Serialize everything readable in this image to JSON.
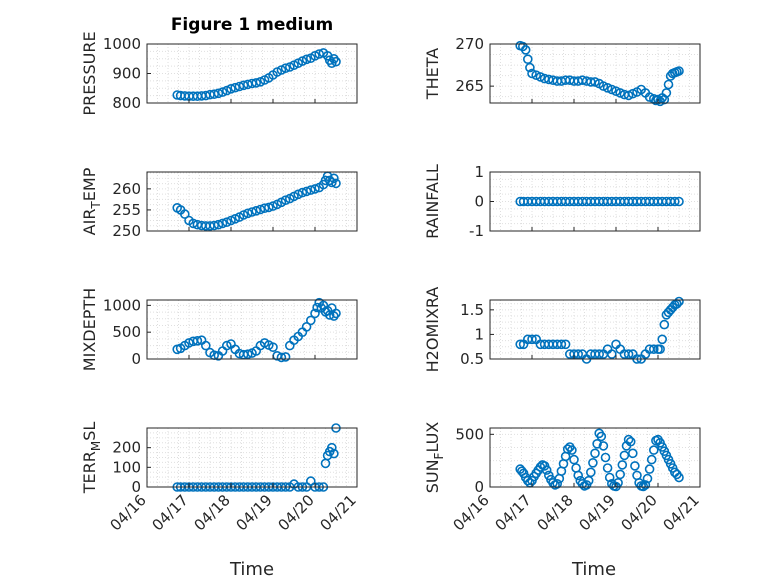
{
  "figure_title": "Figure 1 medium",
  "xlabel": "Time",
  "x_ticks": [
    "04/16",
    "04/17",
    "04/18",
    "04/19",
    "04/20",
    "04/21"
  ],
  "colors": {
    "marker": "#0072BD",
    "axis": "#262626",
    "grid": "#dfdfdf"
  },
  "chart_data": [
    {
      "type": "scatter",
      "name": "PRESSURE",
      "ylabel": "PRESSURE",
      "ylim": [
        800,
        1000
      ],
      "yticks": [
        "800",
        "900",
        "1000"
      ],
      "grid": true,
      "x": [
        0.72,
        0.8,
        0.9,
        1,
        1.1,
        1.2,
        1.3,
        1.4,
        1.5,
        1.6,
        1.7,
        1.8,
        1.9,
        2,
        2.1,
        2.2,
        2.3,
        2.4,
        2.5,
        2.6,
        2.7,
        2.8,
        2.9,
        3,
        3.1,
        3.2,
        3.3,
        3.4,
        3.5,
        3.6,
        3.7,
        3.8,
        3.9,
        4,
        4.1,
        4.2,
        4.3,
        4.35,
        4.4,
        4.45,
        4.5
      ],
      "y": [
        827,
        825,
        824,
        823,
        823,
        823,
        824,
        825,
        828,
        830,
        833,
        837,
        842,
        848,
        852,
        856,
        860,
        863,
        866,
        868,
        872,
        878,
        885,
        895,
        905,
        912,
        918,
        922,
        928,
        935,
        942,
        948,
        952,
        960,
        966,
        970,
        960,
        945,
        935,
        950,
        940
      ]
    },
    {
      "type": "scatter",
      "name": "THETA",
      "ylabel": "THETA",
      "ylim": [
        263,
        270
      ],
      "yticks": [
        "265",
        "270"
      ],
      "grid": true,
      "x": [
        0.72,
        0.78,
        0.85,
        0.9,
        0.95,
        1,
        1.1,
        1.2,
        1.3,
        1.4,
        1.5,
        1.6,
        1.7,
        1.8,
        1.9,
        2,
        2.1,
        2.2,
        2.3,
        2.4,
        2.5,
        2.6,
        2.7,
        2.8,
        2.9,
        3,
        3.1,
        3.2,
        3.3,
        3.4,
        3.5,
        3.6,
        3.7,
        3.8,
        3.9,
        3.95,
        4,
        4.05,
        4.1,
        4.15,
        4.2,
        4.25,
        4.3,
        4.35,
        4.4,
        4.45,
        4.5
      ],
      "y": [
        269.8,
        269.7,
        269.3,
        268.2,
        267.2,
        266.5,
        266.3,
        266.1,
        265.9,
        265.8,
        265.7,
        265.6,
        265.6,
        265.7,
        265.7,
        265.6,
        265.6,
        265.7,
        265.6,
        265.5,
        265.5,
        265.3,
        265,
        264.8,
        264.6,
        264.4,
        264.2,
        264,
        263.9,
        264.1,
        264.3,
        264.6,
        264.2,
        263.7,
        263.5,
        263.3,
        263.4,
        263.2,
        263.6,
        263.4,
        264.2,
        265.2,
        266.2,
        266.5,
        266.6,
        266.7,
        266.8
      ]
    },
    {
      "type": "scatter",
      "name": "AIR_TEMP",
      "ylabel": "AIR",
      "ylabel_sub": "T",
      "ylabel_rest": "EMP",
      "ylim": [
        250,
        264
      ],
      "yticks": [
        "250",
        "255",
        "260"
      ],
      "grid": true,
      "x": [
        0.72,
        0.8,
        0.9,
        1,
        1.1,
        1.2,
        1.3,
        1.4,
        1.5,
        1.6,
        1.7,
        1.8,
        1.9,
        2,
        2.1,
        2.2,
        2.3,
        2.4,
        2.5,
        2.6,
        2.7,
        2.8,
        2.9,
        3,
        3.1,
        3.2,
        3.3,
        3.4,
        3.5,
        3.6,
        3.7,
        3.8,
        3.9,
        4,
        4.1,
        4.2,
        4.25,
        4.3,
        4.35,
        4.4,
        4.45,
        4.5
      ],
      "y": [
        255.5,
        255,
        254,
        252.5,
        251.8,
        251.5,
        251.3,
        251.2,
        251.2,
        251.3,
        251.5,
        251.8,
        252.1,
        252.5,
        252.9,
        253.3,
        253.8,
        254.2,
        254.5,
        254.8,
        255.1,
        255.4,
        255.6,
        255.9,
        256.3,
        256.8,
        257.3,
        257.7,
        258.2,
        258.7,
        259.1,
        259.4,
        259.7,
        260,
        260.3,
        261,
        262,
        263,
        262,
        261.5,
        262.5,
        261.3
      ]
    },
    {
      "type": "scatter",
      "name": "RAINFALL",
      "ylabel": "RAINFALL",
      "ylim": [
        -1,
        1
      ],
      "yticks": [
        "-1",
        "0",
        "1"
      ],
      "grid": true,
      "x": [
        0.72,
        0.8,
        0.9,
        1,
        1.1,
        1.2,
        1.3,
        1.4,
        1.5,
        1.6,
        1.7,
        1.8,
        1.9,
        2,
        2.1,
        2.2,
        2.3,
        2.4,
        2.5,
        2.6,
        2.7,
        2.8,
        2.9,
        3,
        3.1,
        3.2,
        3.3,
        3.4,
        3.5,
        3.6,
        3.7,
        3.8,
        3.9,
        4,
        4.1,
        4.2,
        4.3,
        4.4,
        4.5
      ],
      "y": [
        0,
        0,
        0,
        0,
        0,
        0,
        0,
        0,
        0,
        0,
        0,
        0,
        0,
        0,
        0,
        0,
        0,
        0,
        0,
        0,
        0,
        0,
        0,
        0,
        0,
        0,
        0,
        0,
        0,
        0,
        0,
        0,
        0,
        0,
        0,
        0,
        0,
        0,
        0
      ]
    },
    {
      "type": "scatter",
      "name": "MIXDEPTH",
      "ylabel": "MIXDEPTH",
      "ylim": [
        0,
        1100
      ],
      "yticks": [
        "0",
        "500",
        "1000"
      ],
      "grid": true,
      "x": [
        0.72,
        0.8,
        0.9,
        1,
        1.1,
        1.2,
        1.3,
        1.4,
        1.5,
        1.6,
        1.7,
        1.8,
        1.9,
        2,
        2.1,
        2.2,
        2.3,
        2.4,
        2.5,
        2.6,
        2.7,
        2.8,
        2.9,
        3,
        3.1,
        3.2,
        3.3,
        3.4,
        3.5,
        3.6,
        3.7,
        3.8,
        3.9,
        4,
        4.05,
        4.1,
        4.15,
        4.2,
        4.25,
        4.3,
        4.35,
        4.4,
        4.45,
        4.5
      ],
      "y": [
        180,
        200,
        250,
        300,
        330,
        340,
        350,
        250,
        120,
        70,
        60,
        150,
        250,
        280,
        180,
        100,
        80,
        90,
        110,
        150,
        250,
        300,
        260,
        220,
        60,
        30,
        40,
        250,
        350,
        420,
        500,
        600,
        720,
        850,
        960,
        1050,
        950,
        1000,
        880,
        900,
        820,
        950,
        800,
        850
      ]
    },
    {
      "type": "scatter",
      "name": "H2OMIXRA",
      "ylabel": "H2OMIXRA",
      "ylim": [
        0.5,
        1.7
      ],
      "yticks": [
        "0.5",
        "1",
        "1.5"
      ],
      "grid": true,
      "x": [
        0.72,
        0.8,
        0.9,
        1,
        1.1,
        1.2,
        1.3,
        1.4,
        1.5,
        1.6,
        1.7,
        1.8,
        1.9,
        2,
        2.1,
        2.2,
        2.3,
        2.4,
        2.5,
        2.6,
        2.7,
        2.8,
        2.9,
        3,
        3.1,
        3.2,
        3.3,
        3.4,
        3.5,
        3.6,
        3.7,
        3.8,
        3.9,
        4,
        4.05,
        4.1,
        4.15,
        4.2,
        4.25,
        4.3,
        4.35,
        4.4,
        4.45,
        4.5
      ],
      "y": [
        0.8,
        0.8,
        0.9,
        0.9,
        0.9,
        0.8,
        0.8,
        0.8,
        0.8,
        0.8,
        0.8,
        0.8,
        0.6,
        0.6,
        0.6,
        0.6,
        0.5,
        0.6,
        0.6,
        0.6,
        0.6,
        0.7,
        0.6,
        0.8,
        0.7,
        0.6,
        0.6,
        0.6,
        0.5,
        0.5,
        0.6,
        0.7,
        0.7,
        0.7,
        0.7,
        0.9,
        1.2,
        1.4,
        1.45,
        1.5,
        1.55,
        1.6,
        1.62,
        1.67
      ]
    },
    {
      "type": "scatter",
      "name": "TERR_MSL",
      "ylabel": "TERR",
      "ylabel_sub": "M",
      "ylabel_rest": "SL",
      "ylim": [
        0,
        300
      ],
      "yticks": [
        "0",
        "100",
        "200"
      ],
      "grid": true,
      "x": [
        0.72,
        0.8,
        0.9,
        1,
        1.1,
        1.2,
        1.3,
        1.4,
        1.5,
        1.6,
        1.7,
        1.8,
        1.9,
        2,
        2.1,
        2.2,
        2.3,
        2.4,
        2.5,
        2.6,
        2.7,
        2.8,
        2.9,
        3,
        3.1,
        3.2,
        3.3,
        3.4,
        3.5,
        3.6,
        3.7,
        3.8,
        3.9,
        4,
        4.1,
        4.2,
        4.25,
        4.3,
        4.35,
        4.4,
        4.45,
        4.5
      ],
      "y": [
        0,
        0,
        0,
        0,
        0,
        0,
        0,
        0,
        0,
        0,
        0,
        0,
        0,
        0,
        0,
        0,
        0,
        0,
        0,
        0,
        0,
        0,
        0,
        0,
        0,
        0,
        0,
        0,
        15,
        0,
        0,
        0,
        30,
        0,
        0,
        0,
        120,
        160,
        180,
        200,
        170,
        300
      ]
    },
    {
      "type": "scatter",
      "name": "SUN_FLUX",
      "ylabel": "SUN",
      "ylabel_sub": "F",
      "ylabel_rest": "LUX",
      "ylim": [
        0,
        560
      ],
      "yticks": [
        "0",
        "500"
      ],
      "grid": true,
      "x": [
        0.72,
        0.76,
        0.8,
        0.85,
        0.9,
        0.95,
        1,
        1.05,
        1.1,
        1.15,
        1.2,
        1.25,
        1.3,
        1.35,
        1.4,
        1.45,
        1.5,
        1.55,
        1.6,
        1.65,
        1.7,
        1.75,
        1.8,
        1.85,
        1.9,
        1.95,
        2,
        2.05,
        2.1,
        2.15,
        2.2,
        2.25,
        2.3,
        2.35,
        2.4,
        2.45,
        2.5,
        2.55,
        2.6,
        2.65,
        2.7,
        2.75,
        2.8,
        2.85,
        2.9,
        2.95,
        3,
        3.05,
        3.1,
        3.15,
        3.2,
        3.25,
        3.3,
        3.35,
        3.4,
        3.45,
        3.5,
        3.55,
        3.6,
        3.65,
        3.7,
        3.75,
        3.8,
        3.85,
        3.9,
        3.95,
        4,
        4.05,
        4.1,
        4.15,
        4.2,
        4.25,
        4.3,
        4.35,
        4.4,
        4.45,
        4.5
      ],
      "y": [
        170,
        150,
        130,
        90,
        60,
        40,
        60,
        100,
        130,
        160,
        190,
        210,
        200,
        160,
        110,
        70,
        40,
        20,
        30,
        80,
        150,
        220,
        290,
        360,
        380,
        350,
        260,
        180,
        110,
        60,
        30,
        10,
        20,
        60,
        140,
        230,
        320,
        410,
        510,
        480,
        390,
        280,
        180,
        90,
        30,
        10,
        5,
        40,
        120,
        210,
        300,
        390,
        450,
        430,
        320,
        200,
        110,
        40,
        10,
        5,
        20,
        80,
        170,
        260,
        350,
        440,
        450,
        420,
        380,
        340,
        300,
        260,
        220,
        180,
        140,
        120,
        90
      ]
    }
  ]
}
